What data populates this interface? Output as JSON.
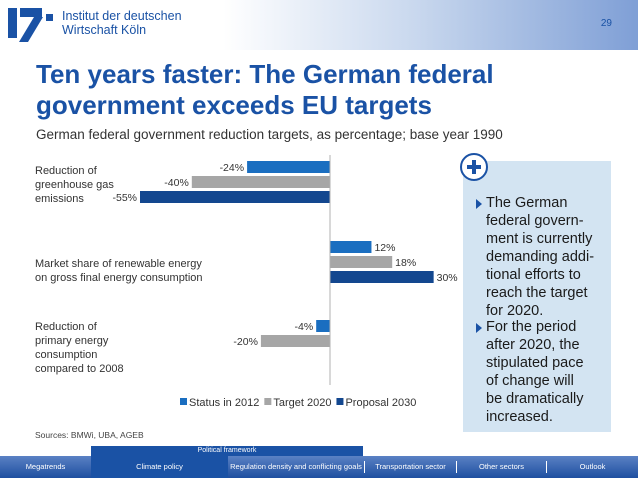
{
  "header": {
    "institute_line1": "Institut der deutschen",
    "institute_line2": "Wirtschaft Köln",
    "page_number": "29"
  },
  "slide": {
    "title": "Ten years faster: The German federal government exceeds EU targets",
    "subtitle": "German federal government reduction targets, as percentage; base year 1990"
  },
  "chart_data": {
    "type": "bar",
    "orientation": "horizontal",
    "unit": "%",
    "categories": [
      "Reduction of greenhouse gas emissions",
      "Market share of renewable energy on gross final energy consumption",
      "Reduction of primary energy consumption compared to 2008"
    ],
    "category_lines": [
      [
        "Reduction of",
        "greenhouse gas",
        "emissions"
      ],
      [
        "Market share of renewable energy",
        "on gross final energy consumption"
      ],
      [
        "Reduction of",
        "primary energy",
        "consumption",
        "compared to 2008"
      ]
    ],
    "series": [
      {
        "name": "Status in 2012",
        "color": "#1a6ec0",
        "values": [
          -24,
          12,
          -4
        ]
      },
      {
        "name": "Target 2020",
        "color": "#a6a6a6",
        "values": [
          -40,
          18,
          -20
        ]
      },
      {
        "name": "Proposal 2030",
        "color": "#13478f",
        "values": [
          -55,
          30,
          null
        ]
      }
    ],
    "data_labels": [
      [
        "-24%",
        "-40%",
        "-55%"
      ],
      [
        "12%",
        "18%",
        "30%"
      ],
      [
        "-4%",
        "-20%",
        ""
      ]
    ],
    "xlim": [
      -55,
      30
    ],
    "legend_position": "bottom",
    "grid": false
  },
  "panel": {
    "bullets": [
      [
        "The German",
        "federal govern-",
        "ment is currently",
        "demanding addi-",
        "tional efforts to",
        "reach the target",
        "for 2020."
      ],
      [
        "For the period",
        "after 2020, the",
        "stipulated pace",
        "of change will",
        "be dramatically",
        "increased."
      ]
    ]
  },
  "footer": {
    "sources": "Sources: BMWi, UBA, AGEB",
    "framework_label": "Political framework",
    "nav": [
      "Megatrends",
      "Climate policy",
      "Regulation density and conflicting goals",
      "Transportation sector",
      "Other sectors",
      "Outlook"
    ]
  },
  "colors": {
    "brand_blue": "#1a52a5",
    "panel_bg": "#d3e4f2"
  }
}
